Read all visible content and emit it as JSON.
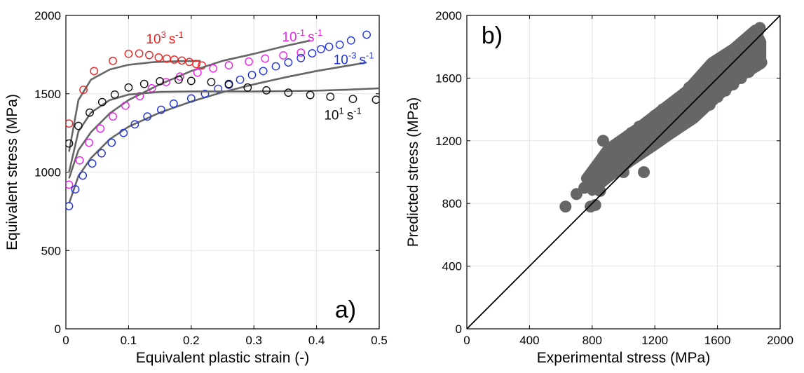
{
  "chart_data": [
    {
      "panel_label": "a)",
      "type": "scatter",
      "xlabel": "Equivalent plastic strain (-)",
      "ylabel": "Equivalent stress (MPa)",
      "xlim": [
        0,
        0.5
      ],
      "ylim": [
        0,
        2000
      ],
      "xticks": [
        0,
        0.1,
        0.2,
        0.3,
        0.4,
        0.5
      ],
      "xtick_labels": [
        "0",
        "0.1",
        "0.2",
        "0.3",
        "0.4",
        "0.5"
      ],
      "yticks": [
        0,
        500,
        1000,
        1500,
        2000
      ],
      "ytick_labels": [
        "0",
        "500",
        "1000",
        "1500",
        "2000"
      ],
      "grid": true,
      "series": [
        {
          "name": "10³ s⁻¹",
          "label_base": "10",
          "label_exp": "3",
          "label_unit": "s",
          "label_unit_exp": "-1",
          "label_at": [
            0.128,
            1820
          ],
          "color": "#ee2222",
          "points": [
            [
              0.005,
              1310
            ],
            [
              0.028,
              1525
            ],
            [
              0.045,
              1645
            ],
            [
              0.075,
              1710
            ],
            [
              0.1,
              1755
            ],
            [
              0.117,
              1757
            ],
            [
              0.133,
              1747
            ],
            [
              0.148,
              1732
            ],
            [
              0.161,
              1724
            ],
            [
              0.173,
              1718
            ],
            [
              0.185,
              1712
            ],
            [
              0.197,
              1703
            ],
            [
              0.208,
              1690
            ],
            [
              0.217,
              1681
            ]
          ],
          "model": [
            [
              0.005,
              1130
            ],
            [
              0.02,
              1460
            ],
            [
              0.04,
              1590
            ],
            [
              0.07,
              1655
            ],
            [
              0.1,
              1685
            ],
            [
              0.14,
              1702
            ],
            [
              0.18,
              1708
            ],
            [
              0.215,
              1710
            ]
          ]
        },
        {
          "name": "10⁻¹ s⁻¹",
          "label_base": "10",
          "label_exp": "-1",
          "label_unit": "s",
          "label_unit_exp": "-1",
          "label_at": [
            0.345,
            1835
          ],
          "color": "#ee22ee",
          "points": [
            [
              0.005,
              920
            ],
            [
              0.022,
              1075
            ],
            [
              0.037,
              1188
            ],
            [
              0.055,
              1278
            ],
            [
              0.075,
              1355
            ],
            [
              0.095,
              1424
            ],
            [
              0.118,
              1485
            ],
            [
              0.137,
              1535
            ],
            [
              0.16,
              1575
            ],
            [
              0.182,
              1610
            ],
            [
              0.21,
              1635
            ],
            [
              0.235,
              1662
            ],
            [
              0.26,
              1682
            ],
            [
              0.292,
              1705
            ],
            [
              0.318,
              1725
            ],
            [
              0.347,
              1745
            ],
            [
              0.375,
              1763
            ]
          ],
          "model": [
            [
              0.005,
              960
            ],
            [
              0.02,
              1140
            ],
            [
              0.04,
              1255
            ],
            [
              0.07,
              1375
            ],
            [
              0.1,
              1460
            ],
            [
              0.15,
              1560
            ],
            [
              0.2,
              1645
            ],
            [
              0.25,
              1710
            ],
            [
              0.3,
              1755
            ],
            [
              0.35,
              1805
            ],
            [
              0.39,
              1840
            ]
          ]
        },
        {
          "name": "10⁻³ s⁻¹",
          "label_base": "10",
          "label_exp": "-3",
          "label_unit": "s",
          "label_unit_exp": "-1",
          "label_at": [
            0.427,
            1690
          ],
          "color": "#2233dd",
          "points": [
            [
              0.005,
              783
            ],
            [
              0.015,
              890
            ],
            [
              0.027,
              978
            ],
            [
              0.042,
              1055
            ],
            [
              0.057,
              1120
            ],
            [
              0.073,
              1188
            ],
            [
              0.092,
              1250
            ],
            [
              0.11,
              1305
            ],
            [
              0.13,
              1355
            ],
            [
              0.152,
              1398
            ],
            [
              0.172,
              1437
            ],
            [
              0.2,
              1470
            ],
            [
              0.222,
              1500
            ],
            [
              0.243,
              1532
            ],
            [
              0.26,
              1557
            ],
            [
              0.278,
              1590
            ],
            [
              0.297,
              1620
            ],
            [
              0.315,
              1645
            ],
            [
              0.335,
              1675
            ],
            [
              0.355,
              1700
            ],
            [
              0.375,
              1728
            ],
            [
              0.393,
              1758
            ],
            [
              0.407,
              1785
            ],
            [
              0.42,
              1800
            ],
            [
              0.437,
              1813
            ],
            [
              0.455,
              1840
            ],
            [
              0.48,
              1877
            ]
          ],
          "model": [
            [
              0.005,
              800
            ],
            [
              0.02,
              975
            ],
            [
              0.04,
              1090
            ],
            [
              0.07,
              1210
            ],
            [
              0.1,
              1290
            ],
            [
              0.15,
              1380
            ],
            [
              0.2,
              1450
            ],
            [
              0.25,
              1510
            ],
            [
              0.3,
              1560
            ],
            [
              0.35,
              1605
            ],
            [
              0.4,
              1645
            ],
            [
              0.48,
              1700
            ]
          ]
        },
        {
          "name": "10¹ s⁻¹",
          "label_base": "10",
          "label_exp": "1",
          "label_unit": "s",
          "label_unit_exp": "-1",
          "label_at": [
            0.412,
            1335
          ],
          "color": "#111111",
          "points": [
            [
              0.005,
              1183
            ],
            [
              0.02,
              1295
            ],
            [
              0.038,
              1380
            ],
            [
              0.058,
              1447
            ],
            [
              0.078,
              1495
            ],
            [
              0.1,
              1540
            ],
            [
              0.125,
              1563
            ],
            [
              0.15,
              1580
            ],
            [
              0.18,
              1590
            ],
            [
              0.2,
              1582
            ],
            [
              0.232,
              1575
            ],
            [
              0.26,
              1563
            ],
            [
              0.29,
              1540
            ],
            [
              0.32,
              1522
            ],
            [
              0.355,
              1507
            ],
            [
              0.39,
              1492
            ],
            [
              0.422,
              1481
            ],
            [
              0.458,
              1467
            ],
            [
              0.495,
              1462
            ]
          ],
          "model": [
            [
              0.005,
              1000
            ],
            [
              0.02,
              1260
            ],
            [
              0.04,
              1380
            ],
            [
              0.07,
              1460
            ],
            [
              0.1,
              1495
            ],
            [
              0.15,
              1512
            ],
            [
              0.2,
              1515
            ],
            [
              0.25,
              1515
            ],
            [
              0.3,
              1515
            ],
            [
              0.35,
              1517
            ],
            [
              0.4,
              1520
            ],
            [
              0.45,
              1526
            ],
            [
              0.5,
              1535
            ]
          ]
        }
      ]
    },
    {
      "panel_label": "b)",
      "type": "scatter",
      "xlabel": "Experimental stress (MPa)",
      "ylabel": "Predicted stress (MPa)",
      "xlim": [
        0,
        2000
      ],
      "ylim": [
        0,
        2000
      ],
      "xticks": [
        0,
        400,
        800,
        1200,
        1600,
        2000
      ],
      "xtick_labels": [
        "0",
        "400",
        "800",
        "1200",
        "1600",
        "2000"
      ],
      "yticks": [
        0,
        400,
        800,
        1200,
        1600,
        2000
      ],
      "ytick_labels": [
        "0",
        "400",
        "800",
        "1200",
        "1600",
        "2000"
      ],
      "grid": true,
      "marker_color": "#666666",
      "identity_line": [
        [
          0,
          0
        ],
        [
          2000,
          2000
        ]
      ],
      "points": [
        [
          630,
          780
        ],
        [
          700,
          860
        ],
        [
          750,
          900
        ],
        [
          790,
          780
        ],
        [
          820,
          790
        ],
        [
          810,
          980
        ],
        [
          850,
          880
        ],
        [
          870,
          1200
        ],
        [
          900,
          1120
        ],
        [
          950,
          1000
        ],
        [
          1000,
          1000
        ],
        [
          1080,
          1100
        ],
        [
          1130,
          1000
        ],
        [
          780,
          960
        ],
        [
          800,
          930
        ],
        [
          840,
          1010
        ],
        [
          860,
          970
        ],
        [
          880,
          1040
        ],
        [
          900,
          1060
        ],
        [
          920,
          1020
        ],
        [
          940,
          1090
        ],
        [
          960,
          1080
        ],
        [
          980,
          1120
        ],
        [
          1000,
          1100
        ],
        [
          1020,
          1150
        ],
        [
          1040,
          1140
        ],
        [
          1060,
          1180
        ],
        [
          1080,
          1160
        ],
        [
          1100,
          1200
        ],
        [
          1120,
          1180
        ],
        [
          1150,
          1230
        ],
        [
          1180,
          1250
        ],
        [
          1200,
          1230
        ],
        [
          1220,
          1290
        ],
        [
          1250,
          1280
        ],
        [
          1280,
          1320
        ],
        [
          1300,
          1300
        ],
        [
          1320,
          1360
        ],
        [
          1350,
          1350
        ],
        [
          1380,
          1390
        ],
        [
          1400,
          1380
        ],
        [
          1420,
          1440
        ],
        [
          1450,
          1430
        ],
        [
          1480,
          1480
        ],
        [
          1500,
          1460
        ],
        [
          1520,
          1520
        ],
        [
          1550,
          1520
        ],
        [
          1580,
          1570
        ],
        [
          1600,
          1560
        ],
        [
          1630,
          1620
        ],
        [
          1650,
          1610
        ],
        [
          1680,
          1660
        ],
        [
          1700,
          1650
        ],
        [
          1720,
          1700
        ],
        [
          1750,
          1710
        ],
        [
          1780,
          1750
        ],
        [
          1800,
          1780
        ],
        [
          1820,
          1800
        ],
        [
          1840,
          1850
        ],
        [
          1860,
          1900
        ],
        [
          1870,
          1920
        ],
        [
          1880,
          1700
        ],
        [
          1850,
          1690
        ],
        [
          1820,
          1680
        ],
        [
          1790,
          1670
        ],
        [
          1760,
          1650
        ],
        [
          1730,
          1640
        ],
        [
          1700,
          1620
        ],
        [
          1670,
          1600
        ],
        [
          1640,
          1580
        ],
        [
          1610,
          1560
        ],
        [
          1580,
          1540
        ],
        [
          1550,
          1500
        ],
        [
          1520,
          1480
        ],
        [
          1490,
          1450
        ],
        [
          1460,
          1420
        ],
        [
          1430,
          1400
        ],
        [
          1400,
          1360
        ],
        [
          1370,
          1340
        ],
        [
          1340,
          1300
        ],
        [
          1310,
          1280
        ],
        [
          1280,
          1260
        ],
        [
          1000,
          1200
        ],
        [
          1050,
          1250
        ],
        [
          1100,
          1290
        ],
        [
          1150,
          1320
        ],
        [
          1200,
          1360
        ],
        [
          1250,
          1400
        ],
        [
          1300,
          1420
        ],
        [
          1350,
          1450
        ],
        [
          1400,
          1480
        ],
        [
          1420,
          1540
        ],
        [
          1460,
          1540
        ],
        [
          1500,
          1580
        ],
        [
          1550,
          1620
        ],
        [
          1600,
          1660
        ],
        [
          1650,
          1700
        ],
        [
          1700,
          1740
        ],
        [
          1750,
          1780
        ],
        [
          1150,
          1180
        ],
        [
          1200,
          1200
        ],
        [
          1250,
          1220
        ],
        [
          1300,
          1250
        ],
        [
          1350,
          1300
        ],
        [
          1400,
          1320
        ],
        [
          1450,
          1350
        ],
        [
          1500,
          1400
        ],
        [
          1550,
          1430
        ],
        [
          1600,
          1480
        ],
        [
          1650,
          1520
        ],
        [
          1700,
          1560
        ],
        [
          1750,
          1600
        ],
        [
          1800,
          1640
        ],
        [
          1850,
          1680
        ]
      ]
    }
  ]
}
